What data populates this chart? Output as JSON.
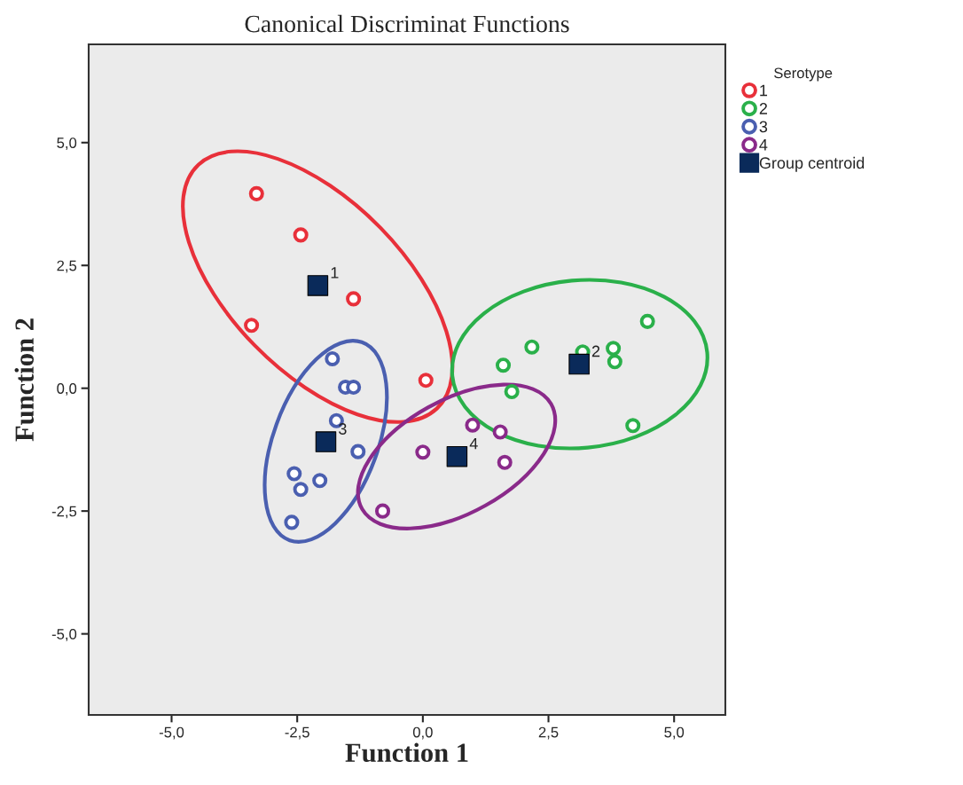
{
  "chart_data": {
    "type": "scatter",
    "title": "Canonical Discriminat Functions",
    "xlabel": "Function 1",
    "ylabel": "Function 2",
    "legend_title": "Serotype",
    "legend": "top right",
    "grid": false,
    "xlim": [
      -6.65,
      6.02
    ],
    "ylim": [
      -6.65,
      7.0
    ],
    "xticks": [
      {
        "value": -5,
        "label": "-5,0"
      },
      {
        "value": -2.5,
        "label": "-2,5"
      },
      {
        "value": 0,
        "label": "0,0"
      },
      {
        "value": 2.5,
        "label": "2,5"
      },
      {
        "value": 5,
        "label": "5,0"
      }
    ],
    "yticks": [
      {
        "value": -5,
        "label": "-5,0"
      },
      {
        "value": -2.5,
        "label": "-2,5"
      },
      {
        "value": 0,
        "label": "0,0"
      },
      {
        "value": 2.5,
        "label": "2,5"
      },
      {
        "value": 5,
        "label": "5,0"
      }
    ],
    "series": [
      {
        "name": "1",
        "color": "#e8303a",
        "marker": "circle",
        "x": [
          -3.31,
          -2.43,
          -1.38,
          -3.41,
          0.06
        ],
        "values": [
          3.96,
          3.12,
          1.82,
          1.28,
          0.16
        ]
      },
      {
        "name": "2",
        "color": "#2ab04a",
        "marker": "circle",
        "x": [
          4.47,
          2.17,
          3.18,
          3.79,
          3.82,
          1.6,
          1.77,
          4.18
        ],
        "values": [
          1.36,
          0.84,
          0.74,
          0.81,
          0.54,
          0.47,
          -0.07,
          -0.76
        ]
      },
      {
        "name": "3",
        "color": "#4a5fb0",
        "marker": "circle",
        "x": [
          -1.8,
          -1.54,
          -1.38,
          -1.72,
          -1.29,
          -2.56,
          -2.05,
          -2.43,
          -2.61
        ],
        "values": [
          0.6,
          0.02,
          0.02,
          -0.66,
          -1.29,
          -1.74,
          -1.88,
          -2.06,
          -2.73
        ]
      },
      {
        "name": "4",
        "color": "#8a2a8a",
        "marker": "circle",
        "x": [
          0.0,
          0.99,
          1.54,
          1.63,
          -0.8
        ],
        "values": [
          -1.3,
          -0.75,
          -0.89,
          -1.51,
          -2.5
        ]
      },
      {
        "name": "Group centroid",
        "color": "#0a2a5a",
        "marker": "square",
        "x": [
          -2.09,
          3.11,
          -1.93,
          0.68
        ],
        "values": [
          2.09,
          0.49,
          -1.09,
          -1.39
        ]
      }
    ],
    "annotations": [
      {
        "text": "1",
        "x": -2.09,
        "y": 2.09
      },
      {
        "text": "2",
        "x": 3.11,
        "y": 0.49
      },
      {
        "text": "3",
        "x": -1.93,
        "y": -1.09
      },
      {
        "text": "4",
        "x": 0.68,
        "y": -1.39
      }
    ]
  }
}
